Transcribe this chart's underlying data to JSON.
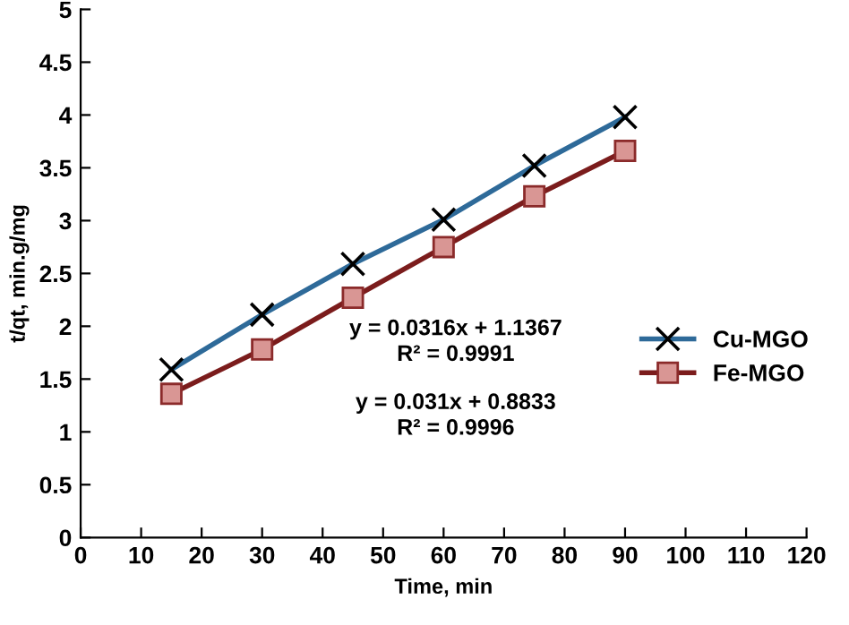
{
  "chart_data": {
    "type": "line",
    "xlabel": "Time, min",
    "ylabel": "t/qt, min.g/mg",
    "x": [
      15,
      30,
      45,
      60,
      75,
      90
    ],
    "series": [
      {
        "name": "Cu-MGO",
        "color": "#2e6a99",
        "marker": "cross",
        "values": [
          1.59,
          2.11,
          2.59,
          3.01,
          3.52,
          3.98
        ]
      },
      {
        "name": "Fe-MGO",
        "color": "#7b1c1c",
        "marker": "square",
        "values": [
          1.36,
          1.78,
          2.27,
          2.75,
          3.23,
          3.66
        ]
      }
    ],
    "xlim": [
      0,
      120
    ],
    "xticks": [
      0,
      10,
      20,
      30,
      40,
      50,
      60,
      70,
      80,
      90,
      100,
      110,
      120
    ],
    "ylim": [
      0,
      5
    ],
    "yticks": [
      0,
      0.5,
      1,
      1.5,
      2,
      2.5,
      3,
      3.5,
      4,
      4.5,
      5
    ],
    "annotations": [
      "y = 0.0316x + 1.1367\nR² = 0.9991",
      "y = 0.031x + 0.8833\nR² = 0.9996"
    ],
    "legend": "right",
    "grid": false,
    "line_style": "solid"
  }
}
